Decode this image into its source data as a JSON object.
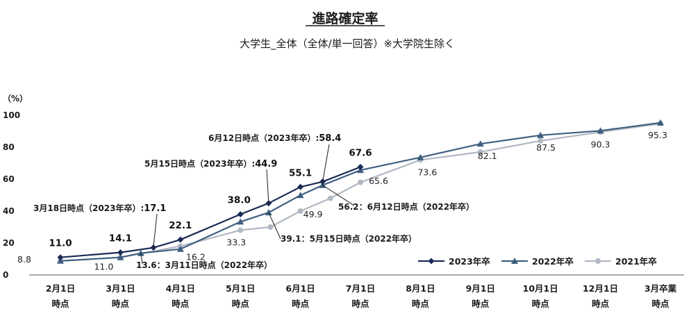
{
  "chart_data": {
    "type": "line",
    "title": "進路確定率",
    "subtitle": "大学生_全体（全体/単一回答）※大学院生除く",
    "yunit": "（%）",
    "ylim": [
      0,
      100
    ],
    "yticks": [
      0,
      20,
      40,
      60,
      80,
      100
    ],
    "grid": false,
    "legend_position": "bottom-right",
    "x_points": [
      [
        "2月1日",
        "時点"
      ],
      [
        "3月1日",
        "時点"
      ],
      [
        "4月1日",
        "時点"
      ],
      [
        "5月1日",
        "時点"
      ],
      [
        "6月1日",
        "時点"
      ],
      [
        "7月1日",
        "時点"
      ],
      [
        "8月1日",
        "時点"
      ],
      [
        "9月1日",
        "時点"
      ],
      [
        "10月1日",
        "時点"
      ],
      [
        "12月1日",
        "時点"
      ],
      [
        "3月卒業",
        "時点"
      ]
    ],
    "series": [
      {
        "name": "2023年卒",
        "color": "#1b2b55",
        "marker": "diamond",
        "points": [
          {
            "x": 0,
            "y": 11.0,
            "label": "11.0"
          },
          {
            "x": 1,
            "y": 14.1,
            "label": "14.1"
          },
          {
            "x": 1.55,
            "y": 17.1
          },
          {
            "x": 2,
            "y": 22.1,
            "label": "22.1"
          },
          {
            "x": 3,
            "y": 38.0,
            "label": "38.0"
          },
          {
            "x": 3.47,
            "y": 44.9
          },
          {
            "x": 4,
            "y": 55.1,
            "label": "55.1"
          },
          {
            "x": 4.37,
            "y": 58.4
          },
          {
            "x": 5,
            "y": 67.6,
            "label": "67.6"
          }
        ]
      },
      {
        "name": "2022年卒",
        "color": "#3f5f80",
        "marker": "triangle",
        "points": [
          {
            "x": 0,
            "y": 8.8,
            "label": "8.8"
          },
          {
            "x": 1,
            "y": 11.0,
            "label": "11.0"
          },
          {
            "x": 1.34,
            "y": 13.6
          },
          {
            "x": 2,
            "y": 16.2,
            "label": "16.2"
          },
          {
            "x": 3,
            "y": 33.3,
            "label": "33.3"
          },
          {
            "x": 3.47,
            "y": 39.1
          },
          {
            "x": 4,
            "y": 49.9,
            "label": "49.9"
          },
          {
            "x": 4.37,
            "y": 56.2
          },
          {
            "x": 5,
            "y": 65.6,
            "label": "65.6"
          },
          {
            "x": 6,
            "y": 73.6,
            "label": "73.6"
          },
          {
            "x": 7,
            "y": 82.1,
            "label": "82.1"
          },
          {
            "x": 8,
            "y": 87.5,
            "label": "87.5"
          },
          {
            "x": 9,
            "y": 90.3,
            "label": "90.3"
          },
          {
            "x": 10,
            "y": 95.3,
            "label": "95.3"
          }
        ]
      },
      {
        "name": "2021年卒",
        "color": "#b0b8c2",
        "marker": "circle",
        "points": [
          {
            "x": 0,
            "y": 8.8
          },
          {
            "x": 1,
            "y": 11.0
          },
          {
            "x": 2,
            "y": 18.0
          },
          {
            "x": 3,
            "y": 28.0
          },
          {
            "x": 3.5,
            "y": 30.0
          },
          {
            "x": 4,
            "y": 40.0
          },
          {
            "x": 4.5,
            "y": 48.0
          },
          {
            "x": 5,
            "y": 58.0
          },
          {
            "x": 6,
            "y": 72.0
          },
          {
            "x": 7,
            "y": 77.0
          },
          {
            "x": 8,
            "y": 84.0
          },
          {
            "x": 9,
            "y": 89.5
          },
          {
            "x": 10,
            "y": 94.8
          }
        ]
      }
    ],
    "annotations": [
      {
        "text": "3月18日時点（2023年卒）:",
        "value": "17.1"
      },
      {
        "text": "5月15日時点（2023年卒）:",
        "value": "44.9"
      },
      {
        "text": "6月12日時点（2023年卒）:",
        "value": "58.4"
      },
      {
        "text": "13.6：3月11日時点（2022年卒）"
      },
      {
        "text": "39.1：5月15日時点（2022年卒）"
      },
      {
        "text": "56.2：6月12日時点（2022年卒）"
      }
    ]
  }
}
